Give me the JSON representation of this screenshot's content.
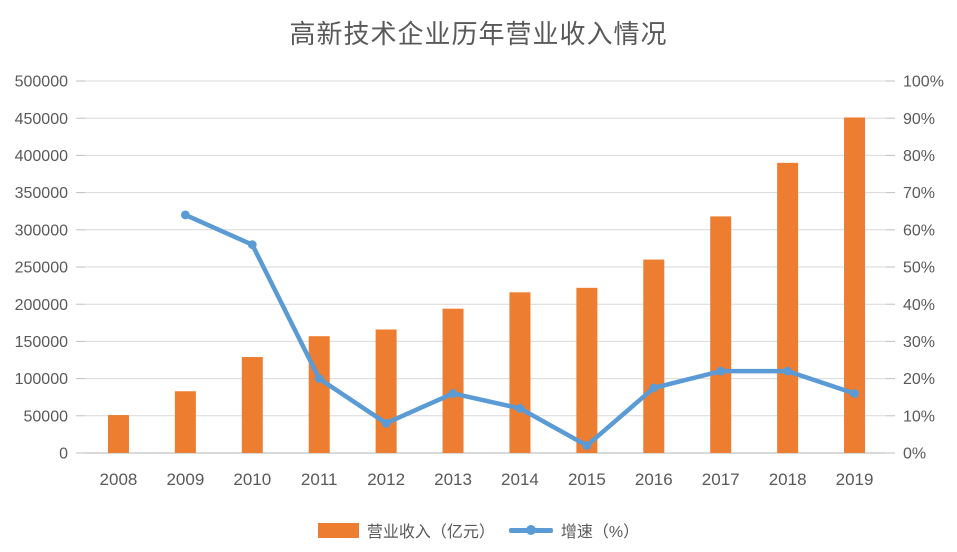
{
  "chart_data": {
    "type": "combo-bar-line",
    "title": "高新技术企业历年营业收入情况",
    "categories": [
      "2008",
      "2009",
      "2010",
      "2011",
      "2012",
      "2013",
      "2014",
      "2015",
      "2016",
      "2017",
      "2018",
      "2019"
    ],
    "series": [
      {
        "name": "营业收入（亿元）",
        "type": "bar",
        "axis": "left",
        "color": "#ED7D31",
        "values": [
          51000,
          83000,
          129000,
          157000,
          166000,
          194000,
          216000,
          222000,
          260000,
          318000,
          390000,
          451000
        ]
      },
      {
        "name": "增速（%）",
        "type": "line",
        "axis": "right",
        "color": "#5B9BD5",
        "values": [
          null,
          64,
          56,
          20,
          8,
          16,
          12,
          2,
          17.5,
          22,
          22,
          16
        ]
      }
    ],
    "left_axis": {
      "min": 0,
      "max": 500000,
      "step": 50000,
      "tick_labels": [
        "0",
        "50000",
        "100000",
        "150000",
        "200000",
        "250000",
        "300000",
        "350000",
        "400000",
        "450000",
        "500000"
      ]
    },
    "right_axis": {
      "min": 0,
      "max": 100,
      "step": 10,
      "tick_labels": [
        "0%",
        "10%",
        "20%",
        "30%",
        "40%",
        "50%",
        "60%",
        "70%",
        "80%",
        "90%",
        "100%"
      ]
    },
    "grid": true,
    "legend_position": "bottom",
    "colors": {
      "bar": "#ED7D31",
      "line": "#5B9BD5",
      "gridline": "#D9D9D9",
      "tick": "#BFBFBF",
      "text": "#595959",
      "background": "#FFFFFF"
    }
  }
}
